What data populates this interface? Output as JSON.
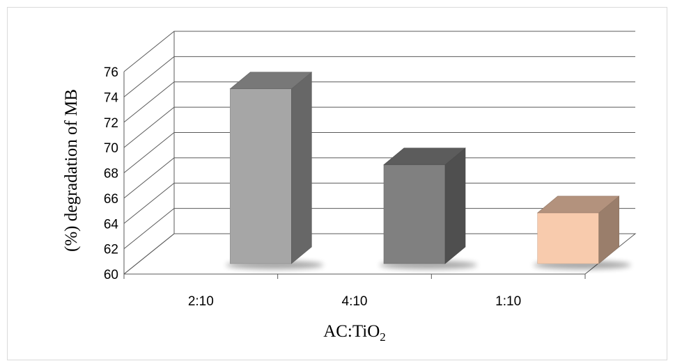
{
  "chart_data": {
    "type": "bar",
    "style": "3d-column",
    "categories": [
      "2:10",
      "4:10",
      "1:10"
    ],
    "values": [
      75.3,
      69.3,
      65.5
    ],
    "bar_colors": [
      "#a6a6a6",
      "#808080",
      "#f8cbad"
    ],
    "title": "",
    "xlabel": {
      "main": "AC:TiO",
      "subscript": "2"
    },
    "ylabel": "(%) degradation of MB",
    "ylim": [
      60,
      76
    ],
    "yticks": [
      60,
      62,
      64,
      66,
      68,
      70,
      72,
      74,
      76
    ],
    "grid": true,
    "legend": "none"
  }
}
